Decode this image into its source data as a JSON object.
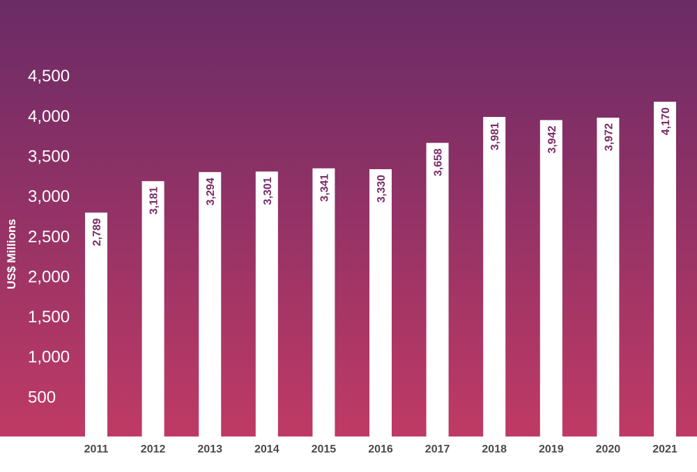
{
  "chart_data": {
    "type": "bar",
    "title": "",
    "xlabel": "",
    "ylabel": "US$ Millions",
    "categories": [
      "2011",
      "2012",
      "2013",
      "2014",
      "2015",
      "2016",
      "2017",
      "2018",
      "2019",
      "2020",
      "2021"
    ],
    "values": [
      2789,
      3181,
      3294,
      3301,
      3341,
      3330,
      3658,
      3981,
      3942,
      3972,
      4170
    ],
    "value_labels": [
      "2,789",
      "3,181",
      "3,294",
      "3,301",
      "3,341",
      "3,330",
      "3,658",
      "3,981",
      "3,942",
      "3,972",
      "4,170"
    ],
    "yticks": [
      "500",
      "1,000",
      "1,500",
      "2,000",
      "2,500",
      "3,000",
      "3,500",
      "4,000",
      "4,500"
    ],
    "ytick_values": [
      500,
      1000,
      1500,
      2000,
      2500,
      3000,
      3500,
      4000,
      4500
    ],
    "grid": false,
    "legend": "none",
    "colors": {
      "background_top": "#6a2b66",
      "background_bottom": "#bf3a65",
      "bar": "#ffffff",
      "data_label": "#7a2a64",
      "ytick": "#ffffff",
      "xtick": "#4a4a4a"
    }
  }
}
